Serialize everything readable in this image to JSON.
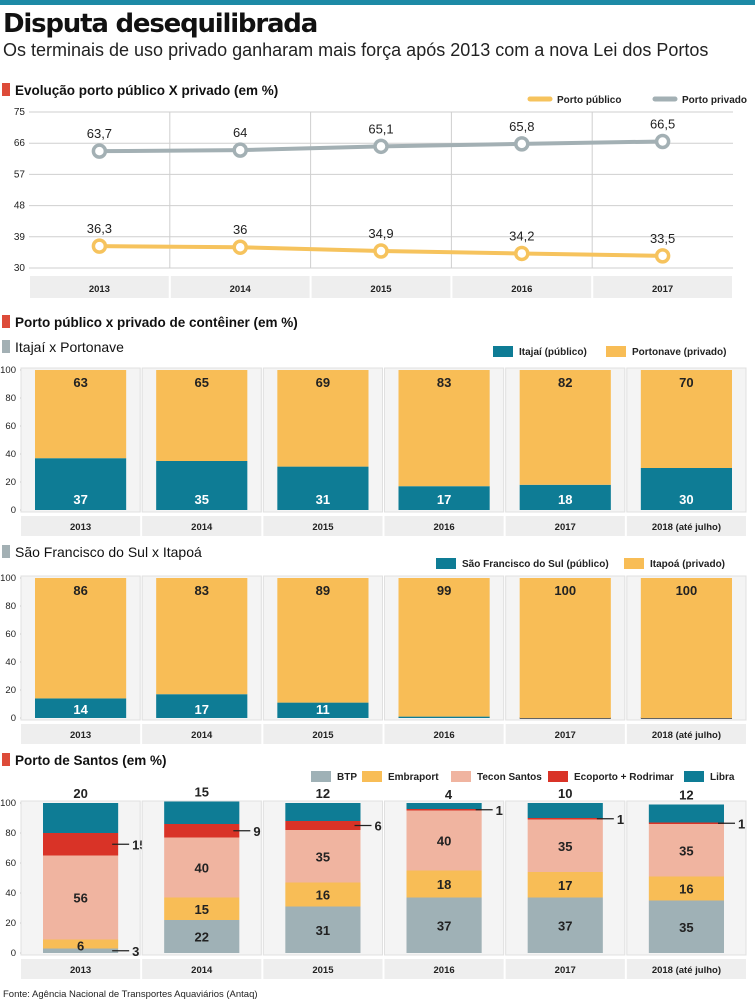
{
  "header": {
    "title": "Disputa desequilibrada",
    "subtitle": "Os terminais de uso privado ganharam mais força após 2013 com a nova Lei dos Portos"
  },
  "colors": {
    "accent_marker": "#dd4b39",
    "publico_line": "#f6c35d",
    "privado_line": "#a3b0b4",
    "publico_bar": "#0e7c95",
    "privado_bar": "#f8bd56",
    "btp": "#9fb1b6",
    "embraport": "#f8bd56",
    "tecon": "#f0b4a0",
    "ecoporto": "#d93327",
    "libra": "#0e7c95",
    "gridline": "#cfcfcf",
    "topbar": "#1d8aa6"
  },
  "sections": {
    "line": "Evolução porto público X privado (em %)",
    "container": "Porto público x privado de contêiner (em %)",
    "itajai": "Itajaí x Portonave",
    "sfs": "São Francisco do Sul x Itapoá",
    "santos": "Porto de Santos (em %)"
  },
  "source": "Fonte: Agência Nacional de Transportes Aquaviários (Antaq)",
  "chart_data": [
    {
      "type": "line",
      "title": "Evolução porto público X privado (em %)",
      "categories": [
        "2013",
        "2014",
        "2015",
        "2016",
        "2017"
      ],
      "yticks": [
        "75",
        "66",
        "57",
        "48",
        "39",
        "30"
      ],
      "ylim": [
        30,
        75
      ],
      "grid": true,
      "legend_position": "top-right",
      "series": [
        {
          "name": "Porto público",
          "values": [
            36.3,
            36,
            34.9,
            34.2,
            33.5
          ],
          "labels": [
            "36,3",
            "36",
            "34,9",
            "34,2",
            "33,5"
          ]
        },
        {
          "name": "Porto privado",
          "values": [
            63.7,
            64,
            65.1,
            65.8,
            66.5
          ],
          "labels": [
            "63,7",
            "64",
            "65,1",
            "65,8",
            "66,5"
          ]
        }
      ]
    },
    {
      "type": "bar",
      "stacked": true,
      "title": "Itajaí x Portonave",
      "categories": [
        "2013",
        "2014",
        "2015",
        "2016",
        "2017",
        "2018 (até julho)"
      ],
      "yticks": [
        "100",
        "80",
        "60",
        "40",
        "20",
        "0"
      ],
      "ylim": [
        0,
        100
      ],
      "legend_position": "top-right",
      "series": [
        {
          "name": "Itajaí (público)",
          "values": [
            37,
            35,
            31,
            17,
            18,
            30
          ]
        },
        {
          "name": "Portonave (privado)",
          "values": [
            63,
            65,
            69,
            83,
            82,
            70
          ]
        }
      ]
    },
    {
      "type": "bar",
      "stacked": true,
      "title": "São Francisco do Sul x Itapoá",
      "categories": [
        "2013",
        "2014",
        "2015",
        "2016",
        "2017",
        "2018 (até julho)"
      ],
      "yticks": [
        "100",
        "80",
        "60",
        "40",
        "20",
        "0"
      ],
      "ylim": [
        0,
        100
      ],
      "legend_position": "top-right",
      "series": [
        {
          "name": "São Francisco do Sul (público)",
          "values": [
            14,
            17,
            11,
            1,
            0,
            0
          ]
        },
        {
          "name": "Itapoá (privado)",
          "values": [
            86,
            83,
            89,
            99,
            100,
            100
          ]
        }
      ]
    },
    {
      "type": "bar",
      "stacked": true,
      "title": "Porto de Santos (em %)",
      "categories": [
        "2013",
        "2014",
        "2015",
        "2016",
        "2017",
        "2018 (até julho)"
      ],
      "yticks": [
        "100",
        "80",
        "60",
        "40",
        "20",
        "0"
      ],
      "ylim": [
        0,
        100
      ],
      "legend_position": "top",
      "series": [
        {
          "name": "BTP",
          "values": [
            3,
            22,
            31,
            37,
            37,
            35
          ]
        },
        {
          "name": "Embraport",
          "values": [
            6,
            15,
            16,
            18,
            17,
            16
          ]
        },
        {
          "name": "Tecon Santos",
          "values": [
            56,
            40,
            35,
            40,
            35,
            35
          ]
        },
        {
          "name": "Ecoporto + Rodrimar",
          "values": [
            15,
            9,
            6,
            1,
            1,
            1
          ]
        },
        {
          "name": "Libra",
          "values": [
            20,
            15,
            12,
            4,
            10,
            12
          ]
        }
      ]
    }
  ]
}
